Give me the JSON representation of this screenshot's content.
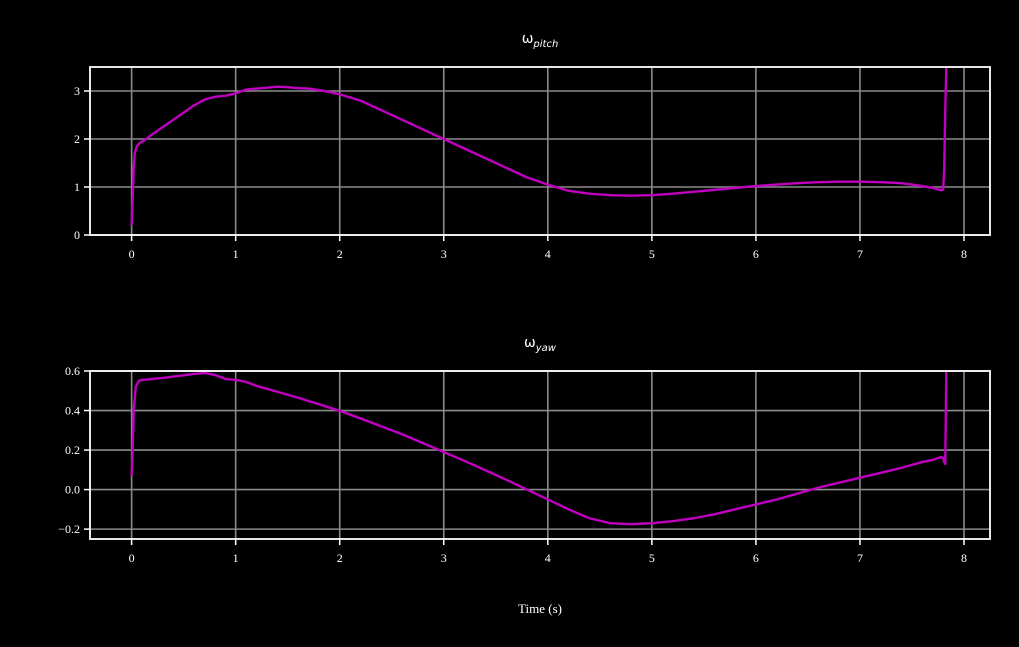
{
  "chart_data": [
    {
      "type": "line",
      "title": "ω",
      "title_subscript": "pitch",
      "xlabel": "",
      "ylabel": "",
      "xlim": [
        -0.4,
        8.25
      ],
      "ylim": [
        0,
        3.5
      ],
      "x_ticks": [
        0,
        1,
        2,
        3,
        4,
        5,
        6,
        7,
        8
      ],
      "y_ticks": [
        0,
        1,
        2,
        3
      ],
      "x_tick_labels": [
        "0",
        "1",
        "2",
        "3",
        "4",
        "5",
        "6",
        "7",
        "8"
      ],
      "y_tick_labels": [
        "0",
        "1",
        "2",
        "3"
      ],
      "grid": true,
      "series": [
        {
          "color": "#c000c0",
          "x": [
            0.0,
            0.01,
            0.02,
            0.03,
            0.05,
            0.08,
            0.12,
            0.2,
            0.3,
            0.4,
            0.5,
            0.6,
            0.7,
            0.8,
            0.9,
            1.0,
            1.1,
            1.2,
            1.3,
            1.4,
            1.5,
            1.6,
            1.7,
            1.8,
            1.9,
            2.0,
            2.2,
            2.4,
            2.6,
            2.8,
            3.0,
            3.2,
            3.4,
            3.6,
            3.8,
            4.0,
            4.2,
            4.4,
            4.6,
            4.8,
            5.0,
            5.2,
            5.4,
            5.6,
            5.8,
            6.0,
            6.2,
            6.4,
            6.6,
            6.8,
            7.0,
            7.2,
            7.4,
            7.5,
            7.6,
            7.7,
            7.75,
            7.78,
            7.8,
            7.81,
            7.82,
            7.83
          ],
          "y": [
            0.2,
            0.8,
            1.4,
            1.7,
            1.85,
            1.92,
            1.97,
            2.1,
            2.25,
            2.4,
            2.55,
            2.7,
            2.82,
            2.88,
            2.9,
            2.95,
            3.03,
            3.05,
            3.07,
            3.09,
            3.08,
            3.06,
            3.05,
            3.02,
            2.98,
            2.93,
            2.8,
            2.6,
            2.4,
            2.2,
            2.0,
            1.8,
            1.6,
            1.4,
            1.2,
            1.05,
            0.92,
            0.86,
            0.83,
            0.82,
            0.83,
            0.86,
            0.9,
            0.94,
            0.98,
            1.02,
            1.05,
            1.08,
            1.1,
            1.11,
            1.11,
            1.1,
            1.08,
            1.05,
            1.02,
            0.98,
            0.95,
            0.93,
            0.95,
            1.4,
            2.6,
            3.5
          ]
        }
      ]
    },
    {
      "type": "line",
      "title": "ω",
      "title_subscript": "yaw",
      "xlabel": "Time (s)",
      "ylabel": "",
      "xlim": [
        -0.4,
        8.25
      ],
      "ylim": [
        -0.25,
        0.6
      ],
      "x_ticks": [
        0,
        1,
        2,
        3,
        4,
        5,
        6,
        7,
        8
      ],
      "y_ticks": [
        -0.2,
        0.0,
        0.2,
        0.4,
        0.6
      ],
      "x_tick_labels": [
        "0",
        "1",
        "2",
        "3",
        "4",
        "5",
        "6",
        "7",
        "8"
      ],
      "y_tick_labels": [
        "−0.2",
        "0.0",
        "0.2",
        "0.4",
        "0.6"
      ],
      "grid": true,
      "series": [
        {
          "color": "#c000c0",
          "x": [
            0.0,
            0.01,
            0.02,
            0.04,
            0.07,
            0.1,
            0.2,
            0.3,
            0.4,
            0.5,
            0.6,
            0.7,
            0.8,
            0.9,
            1.0,
            1.1,
            1.2,
            1.3,
            1.4,
            1.5,
            1.6,
            1.7,
            1.8,
            1.9,
            2.0,
            2.2,
            2.4,
            2.6,
            2.8,
            3.0,
            3.2,
            3.4,
            3.6,
            3.8,
            4.0,
            4.2,
            4.4,
            4.6,
            4.8,
            5.0,
            5.2,
            5.4,
            5.6,
            5.8,
            6.0,
            6.2,
            6.4,
            6.6,
            6.8,
            7.0,
            7.2,
            7.4,
            7.5,
            7.6,
            7.7,
            7.75,
            7.78,
            7.8,
            7.81,
            7.82,
            7.83
          ],
          "y": [
            0.07,
            0.2,
            0.4,
            0.52,
            0.55,
            0.555,
            0.56,
            0.565,
            0.572,
            0.578,
            0.585,
            0.59,
            0.58,
            0.56,
            0.555,
            0.545,
            0.525,
            0.51,
            0.495,
            0.48,
            0.465,
            0.448,
            0.432,
            0.415,
            0.398,
            0.36,
            0.32,
            0.28,
            0.235,
            0.19,
            0.145,
            0.098,
            0.05,
            0.0,
            -0.05,
            -0.1,
            -0.145,
            -0.17,
            -0.175,
            -0.17,
            -0.16,
            -0.145,
            -0.125,
            -0.1,
            -0.075,
            -0.05,
            -0.02,
            0.01,
            0.035,
            0.06,
            0.085,
            0.11,
            0.125,
            0.14,
            0.15,
            0.16,
            0.165,
            0.16,
            0.14,
            0.13,
            0.6
          ]
        }
      ]
    }
  ]
}
